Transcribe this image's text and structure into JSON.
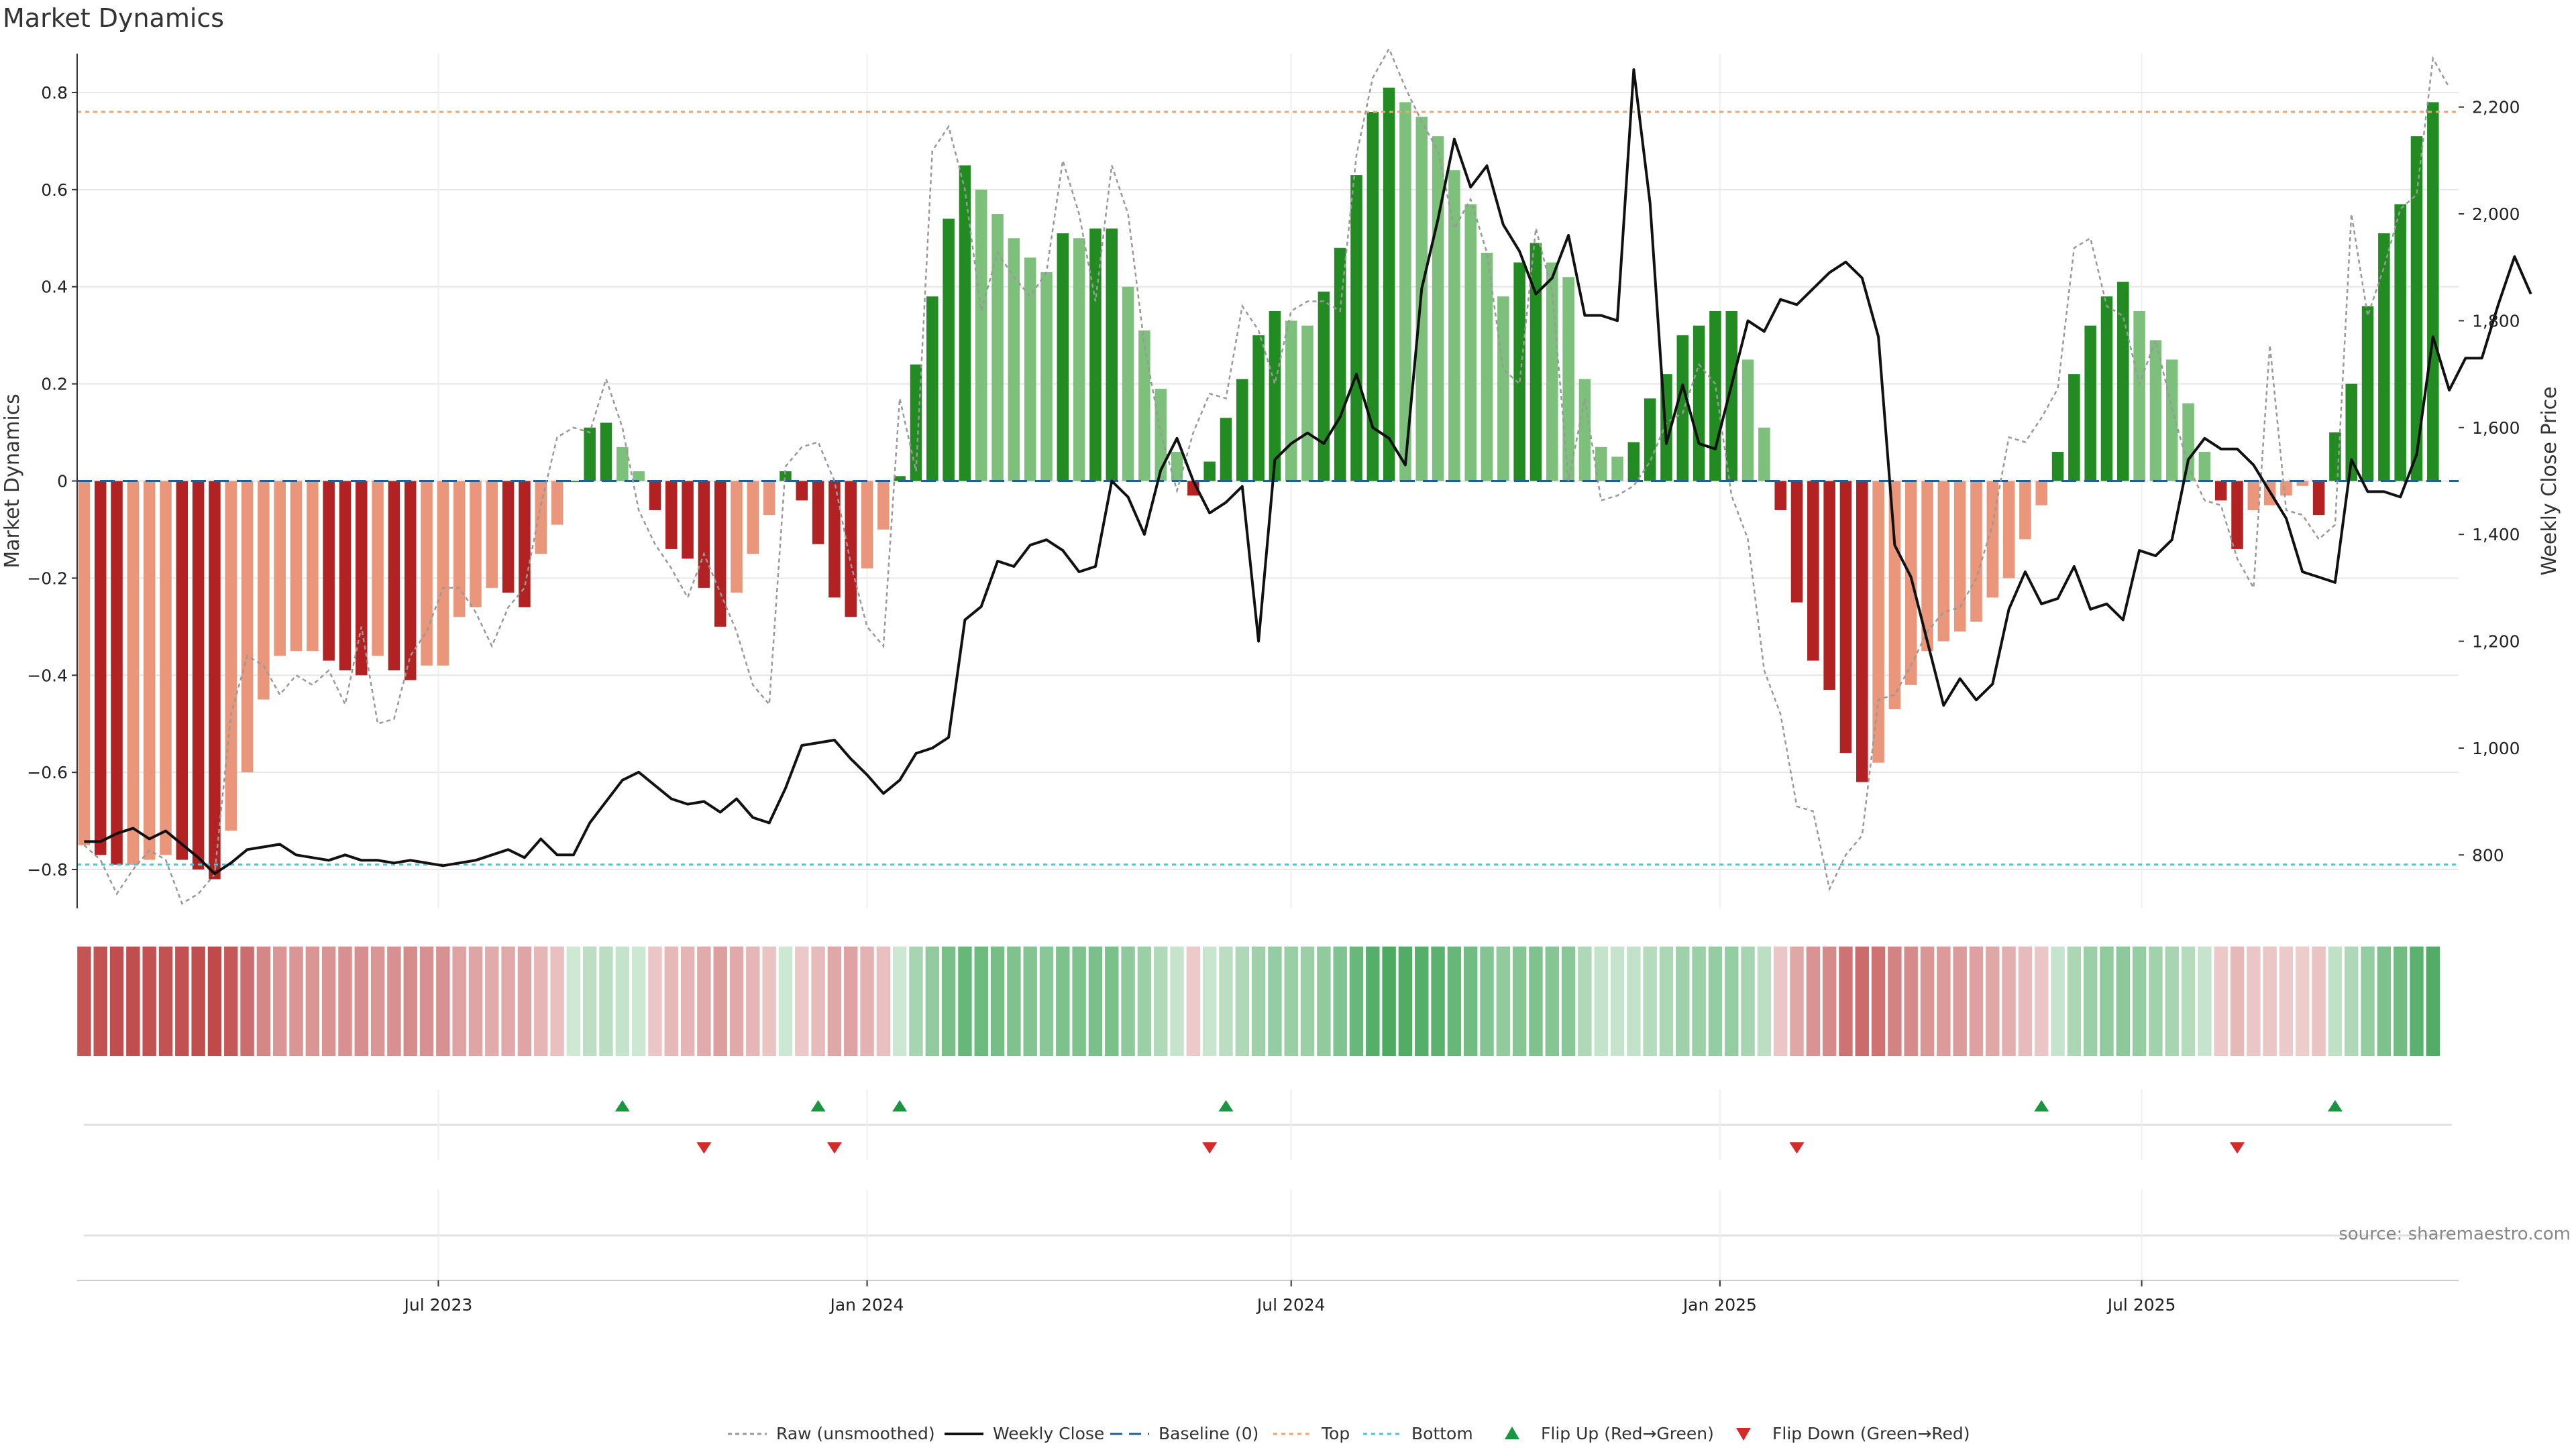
{
  "title": "Market Dynamics",
  "source": "source: sharemaestro.com",
  "colors": {
    "strong_up": "#228B22",
    "weak_up": "#7CC07C",
    "strong_down": "#B22222",
    "weak_down": "#E9967A",
    "raw_line": "#999999",
    "close_line": "#111111",
    "baseline": "#1f5f9a",
    "top": "#f2a36a",
    "bottom": "#4fc3d6",
    "flip_up": "#1a9641",
    "flip_down": "#d42a2a"
  },
  "chart_data": {
    "type": "bar",
    "title": "Market Dynamics",
    "ylabel_left": "Market Dynamics",
    "ylabel_right": "Weekly Close Price",
    "ylim_left": [
      -0.88,
      0.88
    ],
    "ylim_right": [
      700,
      2300
    ],
    "yticks_left": [
      0.8,
      0.6,
      0.4,
      0.2,
      0,
      -0.2,
      -0.4,
      -0.6,
      -0.8
    ],
    "ytick_labels_left": [
      "0.8",
      "0.6",
      "0.4",
      "0.2",
      "0",
      "−0.2",
      "−0.4",
      "−0.6",
      "−0.8"
    ],
    "yticks_right": [
      2200,
      2000,
      1800,
      1600,
      1400,
      1200,
      1000,
      800
    ],
    "ytick_labels_right": [
      "2,200",
      "2,000",
      "1,800",
      "1,600",
      "1,400",
      "1,200",
      "1,000",
      "800"
    ],
    "xticks": [
      "2023-07-01",
      "2024-01-01",
      "2024-07-01",
      "2025-01-01",
      "2025-07-01"
    ],
    "xtick_labels": [
      "Jul 2023",
      "Jan 2024",
      "Jul 2024",
      "Jan 2025",
      "Jul 2025"
    ],
    "x_range": [
      "2023-01-27",
      "2025-11-14"
    ],
    "first_week": "2023-01-30",
    "grid": true,
    "top_line": 0.76,
    "bottom_line": -0.79,
    "baseline": 0,
    "legend_position": "bottom-center",
    "legend": [
      "Raw (unsmoothed)",
      "Weekly Close",
      "Baseline (0)",
      "Top",
      "Bottom",
      "Flip Up (Red→Green)",
      "Flip Down (Green→Red)"
    ],
    "series": [
      {
        "name": "Market Dynamics",
        "values": [
          -0.75,
          -0.77,
          -0.79,
          -0.79,
          -0.78,
          -0.77,
          -0.78,
          -0.8,
          -0.82,
          -0.72,
          -0.6,
          -0.45,
          -0.36,
          -0.35,
          -0.35,
          -0.37,
          -0.39,
          -0.4,
          -0.36,
          -0.39,
          -0.41,
          -0.38,
          -0.38,
          -0.28,
          -0.26,
          -0.22,
          -0.23,
          -0.26,
          -0.15,
          -0.09,
          0.0,
          0.11,
          0.12,
          0.07,
          0.02,
          -0.06,
          -0.14,
          -0.16,
          -0.22,
          -0.3,
          -0.23,
          -0.15,
          -0.07,
          0.02,
          -0.04,
          -0.13,
          -0.24,
          -0.28,
          -0.18,
          -0.1,
          0.01,
          0.24,
          0.38,
          0.54,
          0.65,
          0.6,
          0.55,
          0.5,
          0.46,
          0.43,
          0.51,
          0.5,
          0.52,
          0.52,
          0.4,
          0.31,
          0.19,
          0.06,
          -0.03,
          0.04,
          0.13,
          0.21,
          0.3,
          0.35,
          0.33,
          0.32,
          0.39,
          0.48,
          0.63,
          0.76,
          0.81,
          0.78,
          0.75,
          0.71,
          0.64,
          0.57,
          0.47,
          0.38,
          0.45,
          0.49,
          0.45,
          0.42,
          0.21,
          0.07,
          0.05,
          0.08,
          0.17,
          0.22,
          0.3,
          0.32,
          0.35,
          0.35,
          0.25,
          0.11,
          -0.06,
          -0.25,
          -0.37,
          -0.43,
          -0.56,
          -0.62,
          -0.58,
          -0.47,
          -0.42,
          -0.35,
          -0.33,
          -0.31,
          -0.29,
          -0.24,
          -0.2,
          -0.12,
          -0.05,
          0.06,
          0.22,
          0.32,
          0.38,
          0.41,
          0.35,
          0.29,
          0.25,
          0.16,
          0.06,
          -0.04,
          -0.14,
          -0.06,
          -0.05,
          -0.03,
          -0.01,
          -0.07,
          0.1,
          0.2,
          0.36,
          0.51,
          0.57,
          0.71,
          0.78
        ]
      },
      {
        "name": "Raw (unsmoothed)",
        "values": [
          -0.75,
          -0.78,
          -0.85,
          -0.8,
          -0.76,
          -0.78,
          -0.87,
          -0.85,
          -0.81,
          -0.48,
          -0.36,
          -0.38,
          -0.44,
          -0.4,
          -0.42,
          -0.39,
          -0.46,
          -0.3,
          -0.5,
          -0.49,
          -0.36,
          -0.31,
          -0.22,
          -0.22,
          -0.27,
          -0.34,
          -0.26,
          -0.22,
          -0.05,
          0.09,
          0.11,
          0.1,
          0.21,
          0.11,
          -0.06,
          -0.13,
          -0.18,
          -0.24,
          -0.15,
          -0.23,
          -0.31,
          -0.42,
          -0.46,
          0.03,
          0.07,
          0.08,
          0.0,
          -0.17,
          -0.3,
          -0.34,
          0.17,
          0.02,
          0.68,
          0.73,
          0.6,
          0.35,
          0.47,
          0.42,
          0.38,
          0.43,
          0.66,
          0.55,
          0.37,
          0.65,
          0.55,
          0.28,
          0.1,
          -0.02,
          0.1,
          0.18,
          0.17,
          0.36,
          0.31,
          0.2,
          0.35,
          0.37,
          0.37,
          0.35,
          0.67,
          0.83,
          0.89,
          0.81,
          0.74,
          0.68,
          0.52,
          0.58,
          0.47,
          0.23,
          0.2,
          0.52,
          0.39,
          0.0,
          0.17,
          -0.04,
          -0.03,
          -0.01,
          0.04,
          0.12,
          0.14,
          0.24,
          0.2,
          -0.03,
          -0.12,
          -0.39,
          -0.48,
          -0.67,
          -0.68,
          -0.84,
          -0.77,
          -0.73,
          -0.45,
          -0.44,
          -0.38,
          -0.31,
          -0.27,
          -0.26,
          -0.2,
          -0.09,
          0.09,
          0.08,
          0.13,
          0.19,
          0.48,
          0.5,
          0.36,
          0.34,
          0.2,
          0.29,
          0.15,
          0.03,
          -0.04,
          -0.05,
          -0.16,
          -0.22,
          0.28,
          -0.06,
          -0.07,
          -0.12,
          -0.09,
          0.55,
          0.34,
          0.44,
          0.56,
          0.59,
          0.87,
          0.81
        ]
      },
      {
        "name": "Weekly Close",
        "values": [
          825,
          825,
          840,
          850,
          830,
          845,
          820,
          795,
          765,
          785,
          810,
          815,
          820,
          800,
          795,
          790,
          800,
          790,
          790,
          785,
          790,
          785,
          780,
          785,
          790,
          800,
          810,
          795,
          830,
          800,
          800,
          860,
          900,
          940,
          955,
          930,
          905,
          895,
          900,
          880,
          905,
          870,
          860,
          925,
          1005,
          1010,
          1015,
          980,
          950,
          915,
          940,
          990,
          1000,
          1020,
          1240,
          1265,
          1350,
          1340,
          1380,
          1390,
          1370,
          1330,
          1340,
          1500,
          1470,
          1400,
          1520,
          1580,
          1500,
          1440,
          1460,
          1490,
          1200,
          1540,
          1570,
          1590,
          1570,
          1620,
          1700,
          1600,
          1580,
          1530,
          1860,
          1990,
          2140,
          2050,
          2090,
          1980,
          1930,
          1850,
          1880,
          1960,
          1810,
          1810,
          1800,
          2270,
          2020,
          1570,
          1680,
          1570,
          1560,
          1680,
          1800,
          1780,
          1840,
          1830,
          1860,
          1890,
          1910,
          1880,
          1770,
          1380,
          1320,
          1200,
          1080,
          1130,
          1090,
          1120,
          1260,
          1330,
          1270,
          1280,
          1340,
          1260,
          1270,
          1240,
          1370,
          1360,
          1390,
          1540,
          1580,
          1560,
          1560,
          1530,
          1480,
          1430,
          1330,
          1320,
          1310,
          1540,
          1480,
          1480,
          1470,
          1550,
          1770,
          1670,
          1730,
          1730,
          1830,
          1920,
          1850
        ]
      }
    ],
    "flip_up_dates": [
      "2023-09-18",
      "2023-12-11",
      "2024-01-15",
      "2024-06-03",
      "2025-05-19",
      "2025-09-22"
    ],
    "flip_down_dates": [
      "2023-10-23",
      "2023-12-18",
      "2024-05-27",
      "2025-02-03",
      "2025-08-11"
    ]
  }
}
